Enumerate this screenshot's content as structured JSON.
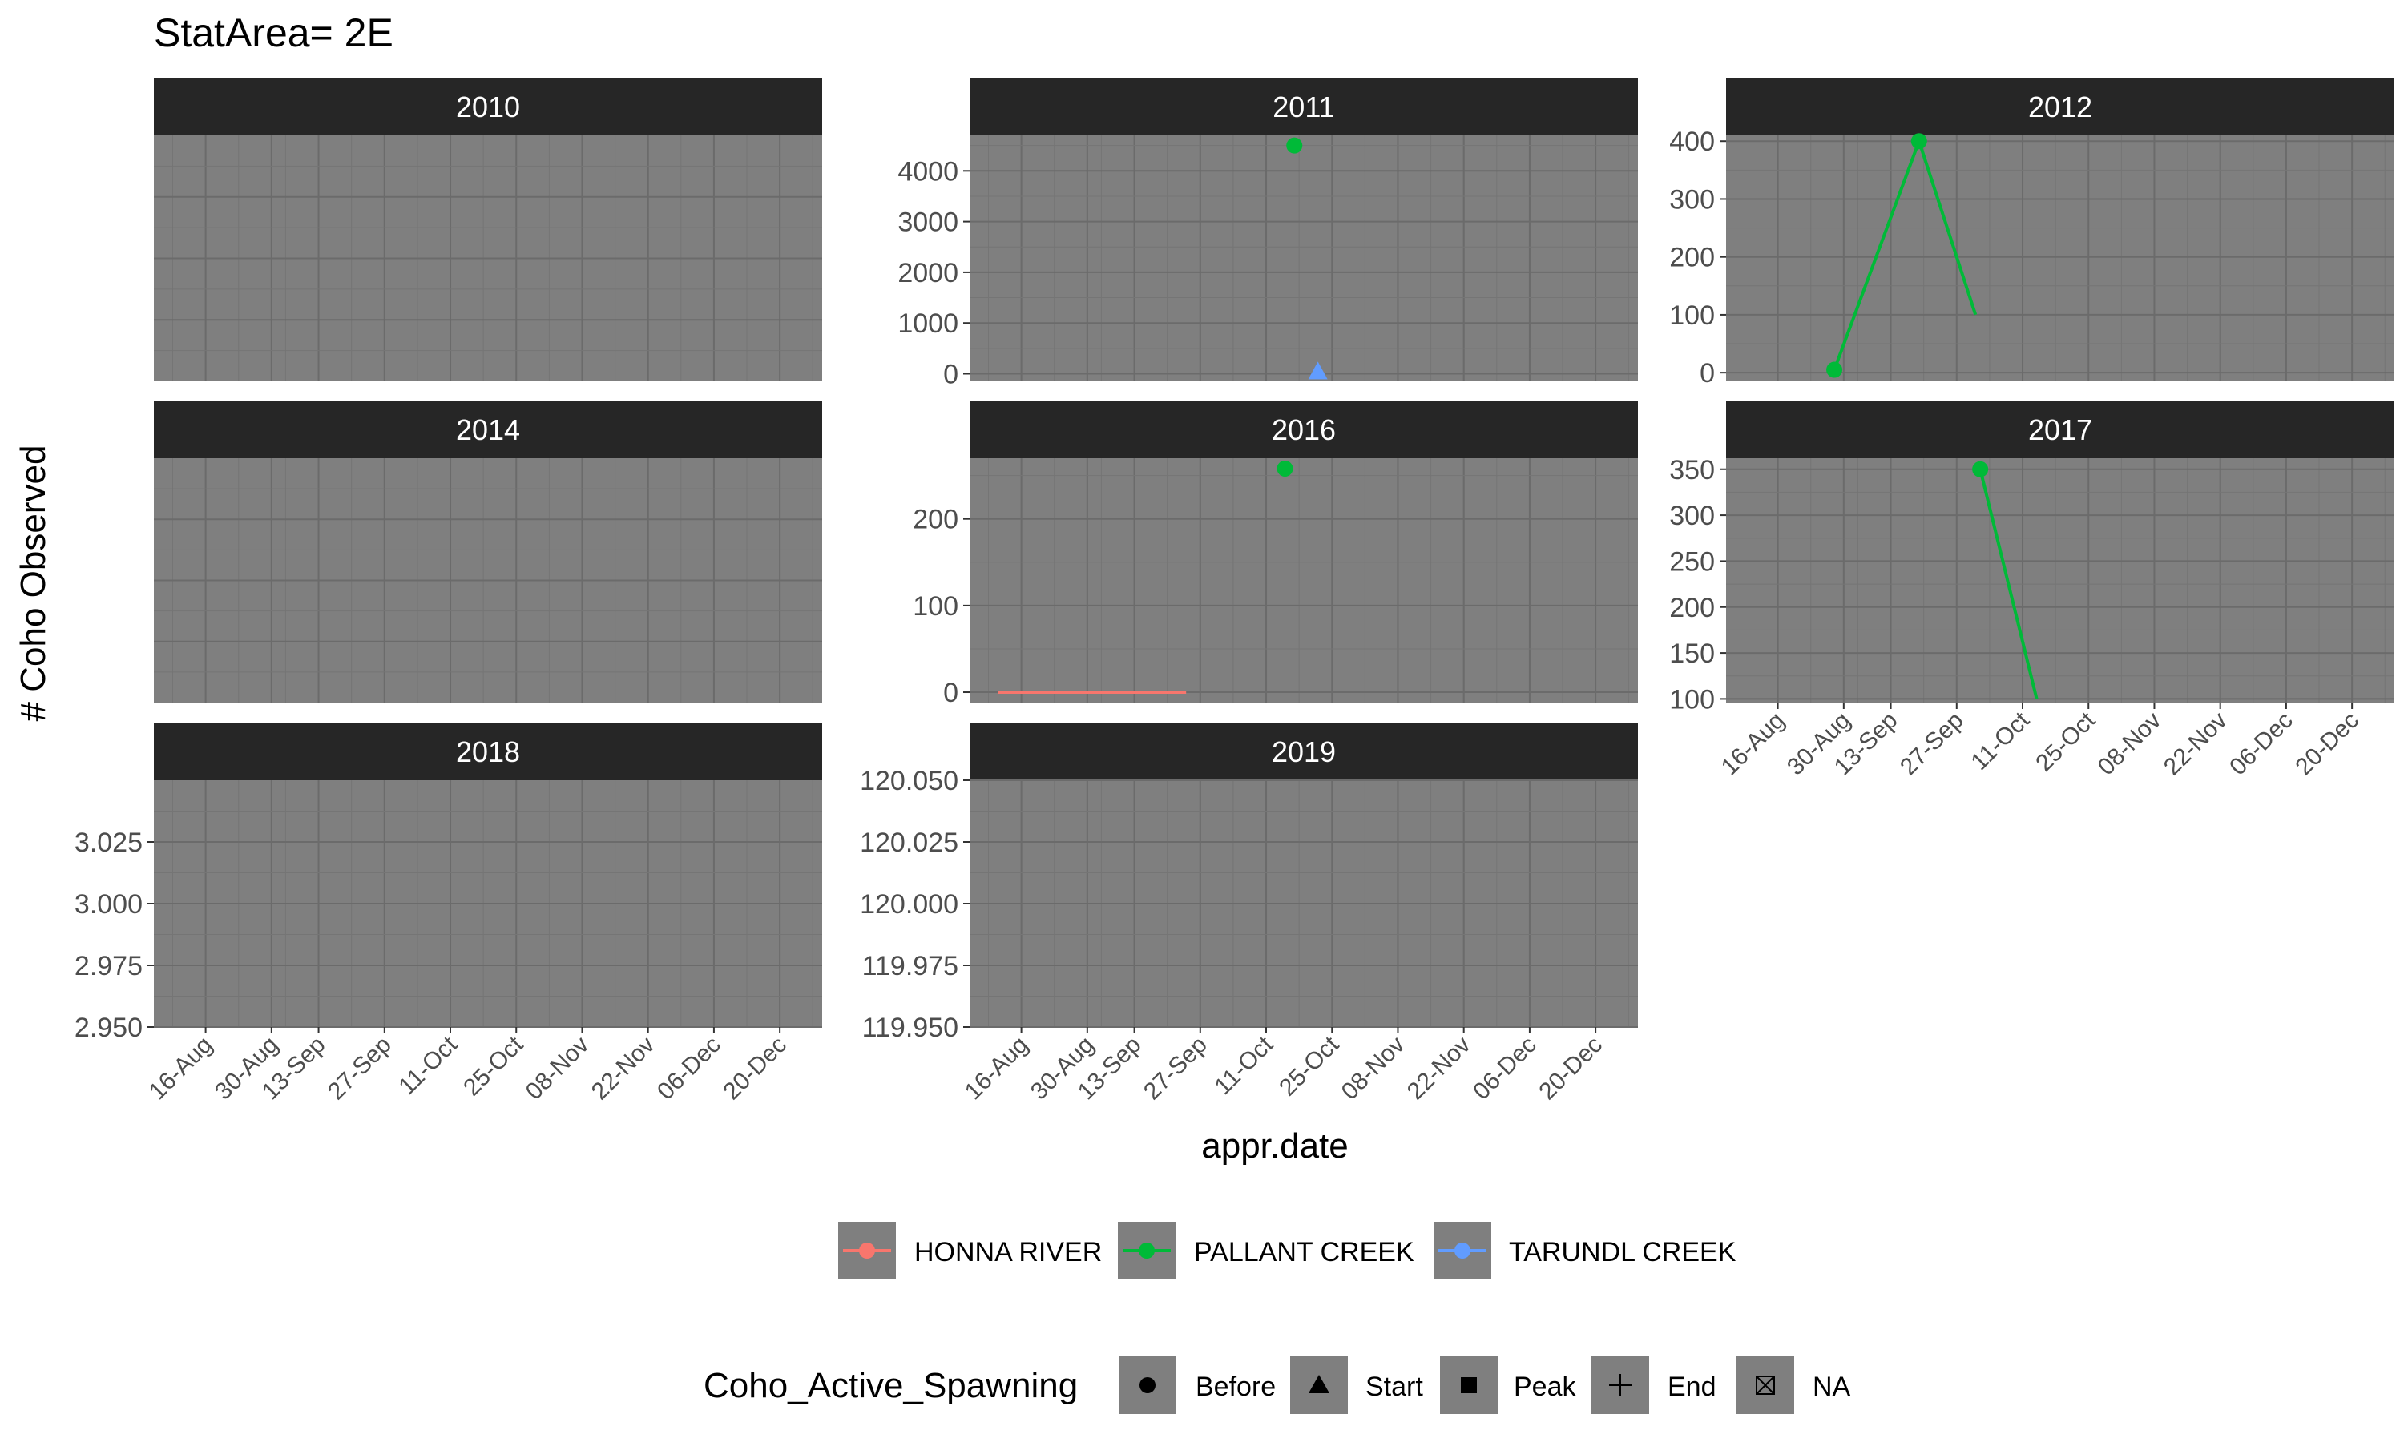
{
  "chart_data": {
    "type": "line",
    "title": "StatArea= 2E",
    "xlabel": "appr.date",
    "ylabel": "# Coho Observed",
    "x_tick_labels": [
      "16-Aug",
      "30-Aug",
      "13-Sep",
      "27-Sep",
      "11-Oct",
      "25-Oct",
      "08-Nov",
      "22-Nov",
      "06-Dec",
      "20-Dec"
    ],
    "panel_background": "#7f7f7f",
    "strip_background": "#262626",
    "series_colors": {
      "HONNA RIVER": "#f8766d",
      "PALLANT CREEK": "#00ba38",
      "TARUNDL CREEK": "#619cff"
    },
    "panels": [
      {
        "label": "2010",
        "y_ticks": [],
        "series": []
      },
      {
        "label": "2011",
        "ylim": [
          -150,
          4700
        ],
        "y_ticks": [
          0,
          1000,
          2000,
          3000,
          4000
        ],
        "series": [
          {
            "name": "PALLANT CREEK",
            "points": [
              {
                "date": "17-Oct",
                "value": 4500,
                "shape": "Before"
              }
            ]
          },
          {
            "name": "TARUNDL CREEK",
            "points": [
              {
                "date": "22-Oct",
                "value": 50,
                "shape": "Start"
              }
            ]
          }
        ]
      },
      {
        "label": "2012",
        "ylim": [
          -15,
          410
        ],
        "y_ticks": [
          0,
          100,
          200,
          300,
          400
        ],
        "series": [
          {
            "name": "PALLANT CREEK",
            "points": [
              {
                "date": "28-Aug",
                "value": 5,
                "shape": "Before"
              },
              {
                "date": "19-Sep",
                "value": 400,
                "shape": "Before"
              },
              {
                "date": "01-Oct",
                "value": 100,
                "shape": "none"
              }
            ]
          }
        ]
      },
      {
        "label": "2014",
        "y_ticks": [],
        "series": []
      },
      {
        "label": "2016",
        "ylim": [
          -12,
          270
        ],
        "y_ticks": [
          0,
          100,
          200
        ],
        "series": [
          {
            "name": "HONNA RIVER",
            "points": [
              {
                "date": "11-Aug",
                "value": 0,
                "shape": "none"
              },
              {
                "date": "24-Sep",
                "value": 0,
                "shape": "none"
              }
            ]
          },
          {
            "name": "PALLANT CREEK",
            "points": [
              {
                "date": "15-Oct",
                "value": 258,
                "shape": "Before"
              }
            ]
          }
        ]
      },
      {
        "label": "2017",
        "ylim": [
          96,
          362
        ],
        "y_ticks": [
          100,
          150,
          200,
          250,
          300,
          350
        ],
        "series": [
          {
            "name": "PALLANT CREEK",
            "points": [
              {
                "date": "02-Oct",
                "value": 350,
                "shape": "Before"
              },
              {
                "date": "14-Oct",
                "value": 100,
                "shape": "none"
              }
            ]
          }
        ]
      },
      {
        "label": "2018",
        "ylim": [
          2.95,
          3.05
        ],
        "y_ticks": [
          "2.950",
          "2.975",
          "3.000",
          "3.025"
        ],
        "series": []
      },
      {
        "label": "2019",
        "ylim": [
          119.95,
          120.05
        ],
        "y_ticks": [
          "119.950",
          "119.975",
          "120.000",
          "120.025",
          "120.050"
        ],
        "series": []
      }
    ],
    "legend_color": {
      "position": "bottom",
      "items": [
        "HONNA RIVER",
        "PALLANT CREEK",
        "TARUNDL CREEK"
      ]
    },
    "legend_shape": {
      "position": "bottom",
      "title": "Coho_Active_Spawning",
      "items": [
        "Before",
        "Start",
        "Peak",
        "End",
        "NA"
      ]
    }
  }
}
